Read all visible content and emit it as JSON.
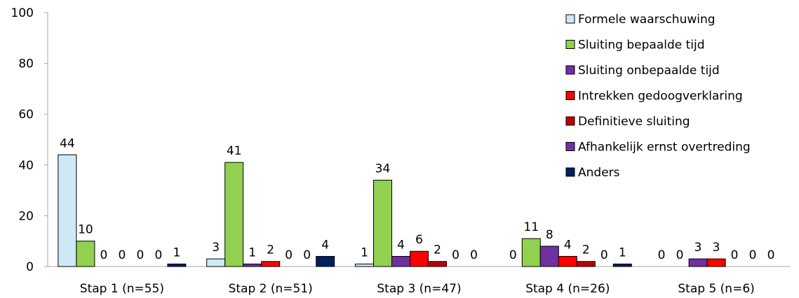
{
  "chart_data": {
    "type": "bar",
    "title": "",
    "xlabel": "",
    "ylabel": "",
    "ylim": [
      0,
      100
    ],
    "yticks": [
      0,
      20,
      40,
      60,
      80,
      100
    ],
    "grid": false,
    "legend_position": "right",
    "categories": [
      "Stap 1 (n=55)",
      "Stap 2 (n=51)",
      "Stap 3 (n=47)",
      "Stap 4 (n=26)",
      "Stap 5 (n=6)"
    ],
    "series": [
      {
        "name": "Formele waarschuwing",
        "color": "#cfe8f7",
        "values": [
          44,
          3,
          1,
          0,
          0
        ]
      },
      {
        "name": "Sluiting bepaalde tijd",
        "color": "#92d050",
        "values": [
          10,
          41,
          34,
          11,
          0
        ]
      },
      {
        "name": "Sluiting onbepaalde tijd",
        "color": "#7030a0",
        "values": [
          0,
          1,
          4,
          8,
          3
        ]
      },
      {
        "name": "Intrekken gedoogverklaring",
        "color": "#ff0000",
        "values": [
          0,
          2,
          6,
          4,
          3
        ]
      },
      {
        "name": "Definitieve sluiting",
        "color": "#c00000",
        "values": [
          0,
          0,
          2,
          2,
          0
        ]
      },
      {
        "name": "Afhankelijk ernst overtreding",
        "color": "#7030a0",
        "values": [
          0,
          0,
          0,
          0,
          0
        ]
      },
      {
        "name": "Anders",
        "color": "#002060",
        "values": [
          1,
          4,
          0,
          1,
          0
        ]
      }
    ]
  }
}
